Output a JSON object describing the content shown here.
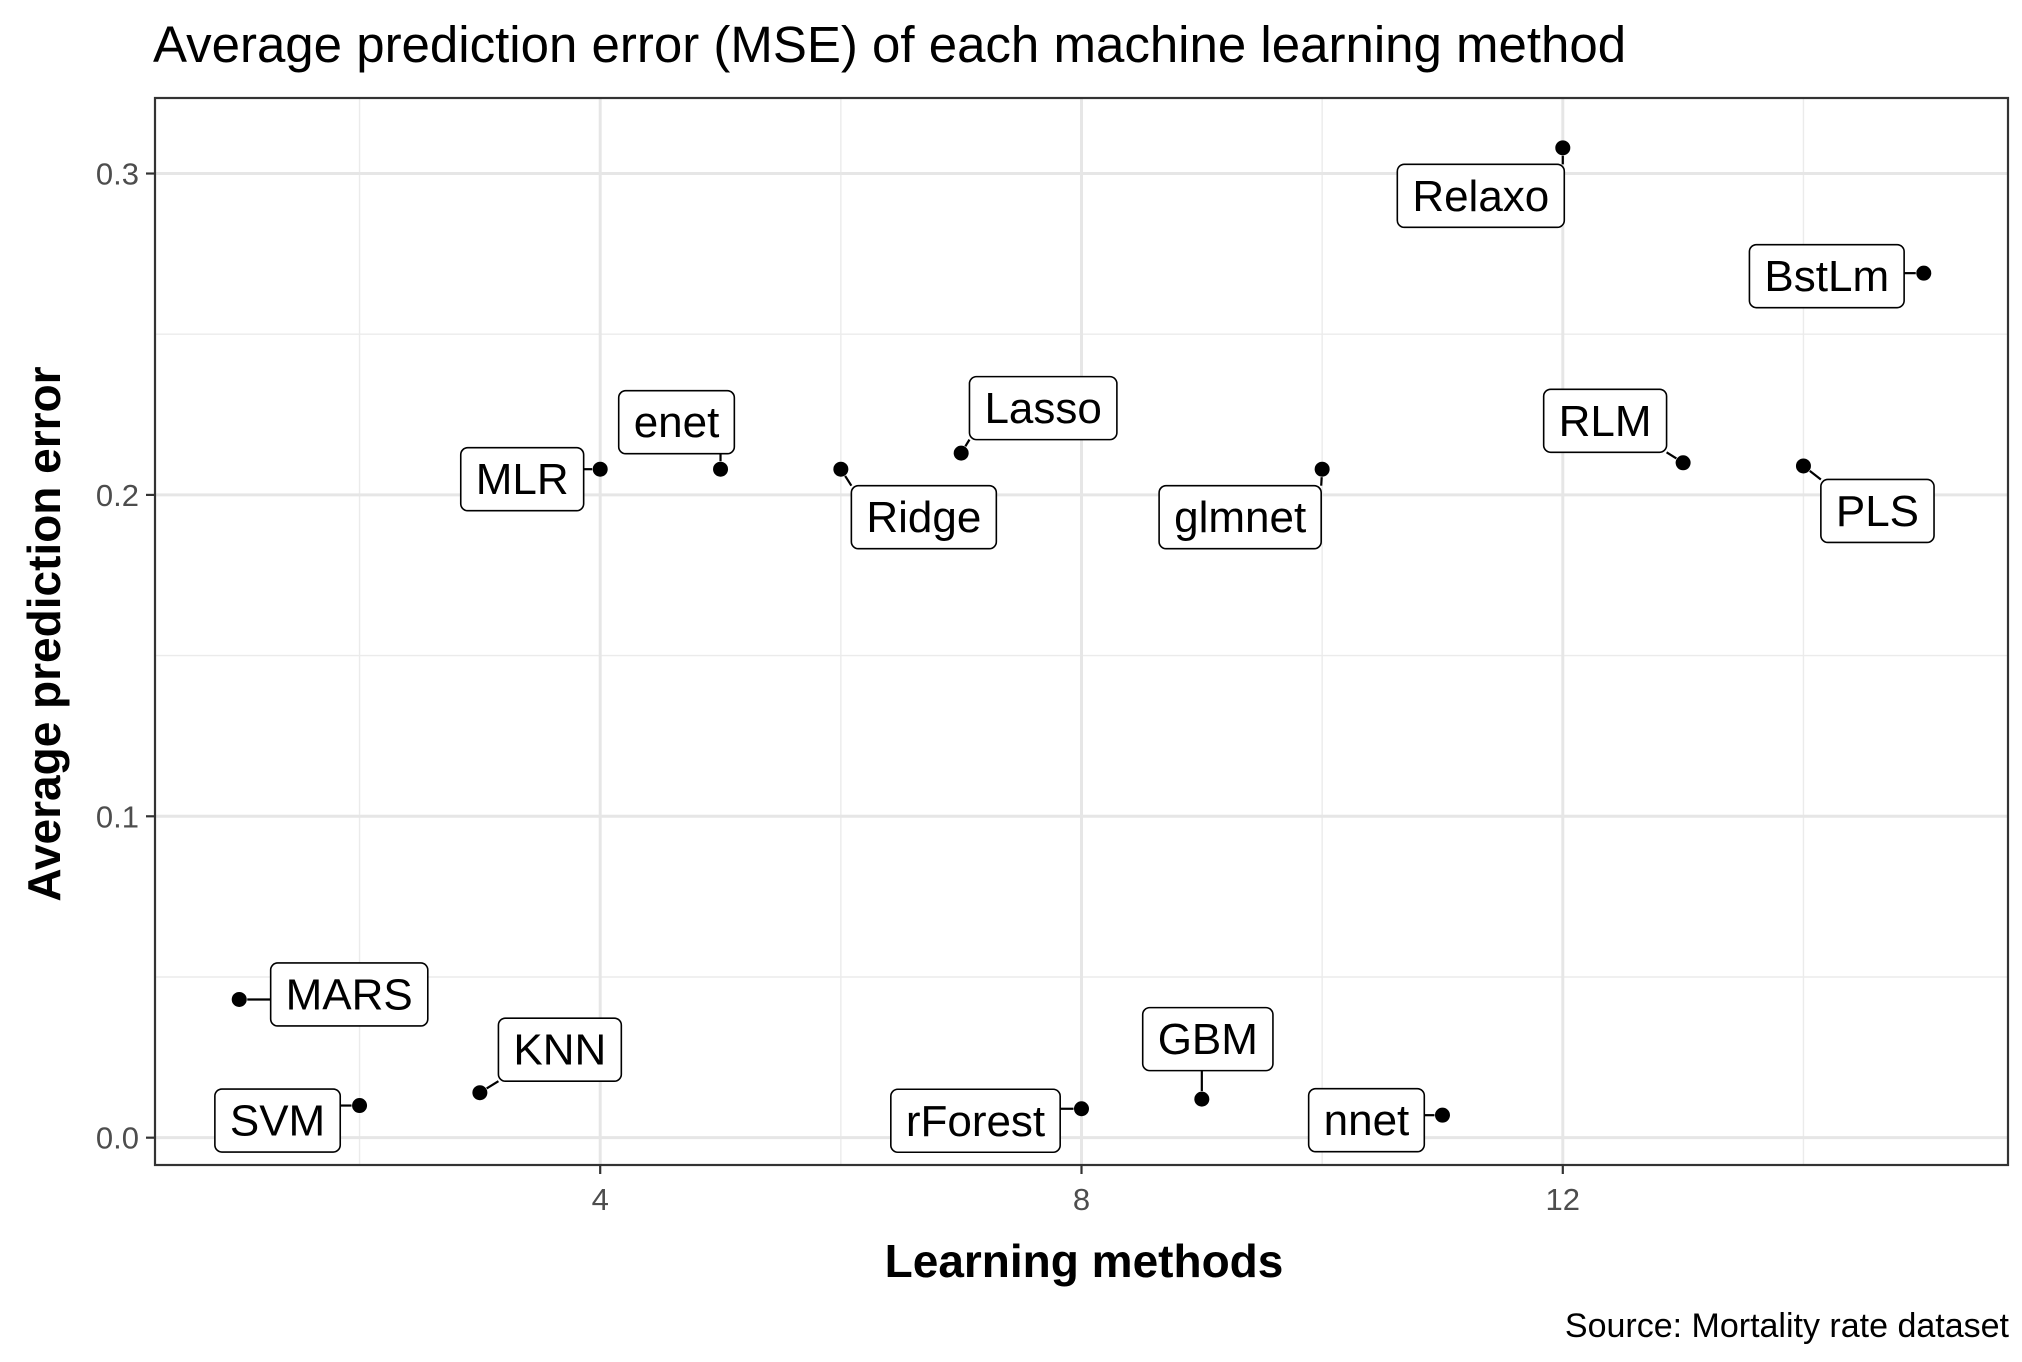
{
  "chart_data": {
    "type": "scatter",
    "title": "Average prediction error (MSE) of each machine learning method",
    "caption": "Source: Mortality rate dataset",
    "xlabel": "Learning methods",
    "ylabel": "Average prediction error",
    "xlim": [
      0.3,
      15.7
    ],
    "ylim": [
      -0.0085,
      0.3235
    ],
    "x_ticks": [
      4,
      8,
      12
    ],
    "y_ticks": [
      0.0,
      0.1,
      0.2,
      0.3
    ],
    "x_tick_labels": [
      "4",
      "8",
      "12"
    ],
    "y_tick_labels": [
      "0.0",
      "0.1",
      "0.2",
      "0.3"
    ],
    "grid": true,
    "points": [
      {
        "label": "MARS",
        "x": 1,
        "y": 0.043
      },
      {
        "label": "SVM",
        "x": 2,
        "y": 0.01
      },
      {
        "label": "KNN",
        "x": 3,
        "y": 0.014
      },
      {
        "label": "MLR",
        "x": 4,
        "y": 0.208
      },
      {
        "label": "enet",
        "x": 5,
        "y": 0.208
      },
      {
        "label": "Ridge",
        "x": 6,
        "y": 0.208
      },
      {
        "label": "Lasso",
        "x": 7,
        "y": 0.213
      },
      {
        "label": "rForest",
        "x": 8,
        "y": 0.009
      },
      {
        "label": "GBM",
        "x": 9,
        "y": 0.012
      },
      {
        "label": "glmnet",
        "x": 10,
        "y": 0.208
      },
      {
        "label": "nnet",
        "x": 11,
        "y": 0.007
      },
      {
        "label": "Relaxo",
        "x": 12,
        "y": 0.308
      },
      {
        "label": "RLM",
        "x": 13,
        "y": 0.21
      },
      {
        "label": "PLS",
        "x": 14,
        "y": 0.209
      },
      {
        "label": "BstLm",
        "x": 15,
        "y": 0.269
      }
    ]
  }
}
